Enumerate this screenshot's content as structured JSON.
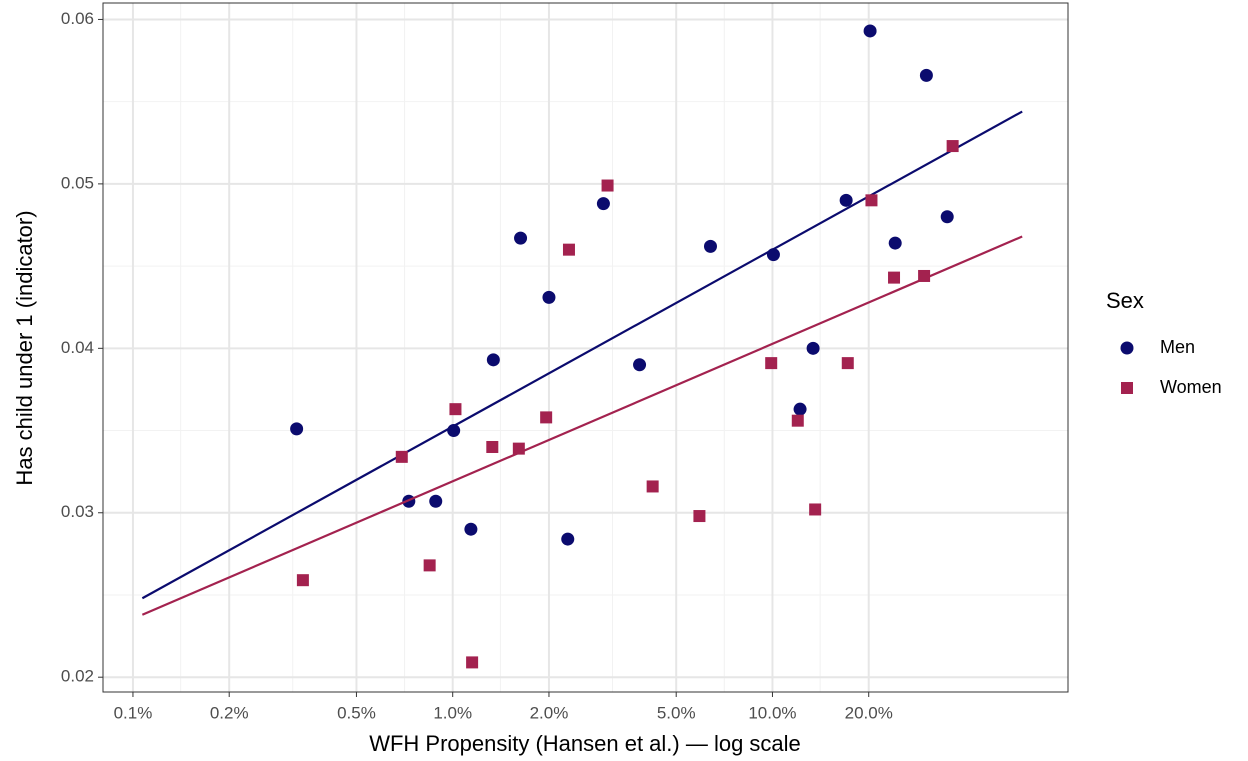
{
  "chart_data": {
    "type": "scatter",
    "xlabel": "WFH Propensity (Hansen et al.) — log scale",
    "ylabel": "Has child under 1 (indicator)",
    "xscale": "log",
    "xlim": [
      0.0806,
      84
    ],
    "ylim": [
      0.0191,
      0.061
    ],
    "xticks": [
      {
        "value": 0.1,
        "label": "0.1%"
      },
      {
        "value": 0.2,
        "label": "0.2%"
      },
      {
        "value": 0.5,
        "label": "0.5%"
      },
      {
        "value": 1,
        "label": "1.0%"
      },
      {
        "value": 2,
        "label": "2.0%"
      },
      {
        "value": 5,
        "label": "5.0%"
      },
      {
        "value": 10,
        "label": "10.0%"
      },
      {
        "value": 20,
        "label": "20.0%"
      }
    ],
    "xminorticks": [
      0.141,
      0.316,
      0.707,
      1.41,
      3.16,
      7.07,
      14.1
    ],
    "yticks": [
      0.02,
      0.03,
      0.04,
      0.05,
      0.06
    ],
    "yminorticks": [
      0.025,
      0.035,
      0.045,
      0.055
    ],
    "grid": true,
    "legend": {
      "title": "Sex",
      "position": "right"
    },
    "series": [
      {
        "name": "Men",
        "color": "#0b0b6e",
        "marker": "circle",
        "x": [
          0.325,
          0.729,
          0.885,
          1.007,
          1.14,
          1.34,
          1.63,
          2.0,
          2.29,
          2.96,
          3.84,
          6.4,
          10.07,
          12.2,
          13.4,
          17.0,
          20.2,
          24.2,
          30.3,
          35.2
        ],
        "values": [
          0.0351,
          0.0307,
          0.0307,
          0.035,
          0.029,
          0.0393,
          0.0467,
          0.0431,
          0.0284,
          0.0488,
          0.039,
          0.0462,
          0.0457,
          0.0363,
          0.04,
          0.049,
          0.0593,
          0.0464,
          0.0566,
          0.048
        ],
        "trend_x": [
          0.107,
          60.4
        ],
        "trend": [
          0.0248,
          0.0544
        ]
      },
      {
        "name": "Women",
        "color": "#a3224f",
        "marker": "square",
        "x": [
          0.34,
          0.693,
          0.847,
          1.02,
          1.15,
          1.33,
          1.61,
          1.96,
          2.31,
          3.05,
          4.22,
          5.91,
          9.91,
          12.0,
          13.6,
          17.2,
          20.4,
          24.0,
          29.8,
          36.6
        ],
        "values": [
          0.0259,
          0.0334,
          0.0268,
          0.0363,
          0.0209,
          0.034,
          0.0339,
          0.0358,
          0.046,
          0.0499,
          0.0316,
          0.0298,
          0.0391,
          0.0356,
          0.0302,
          0.0391,
          0.049,
          0.0443,
          0.0444,
          0.0523
        ],
        "trend_x": [
          0.107,
          60.4
        ],
        "trend": [
          0.0238,
          0.0468
        ]
      }
    ]
  }
}
